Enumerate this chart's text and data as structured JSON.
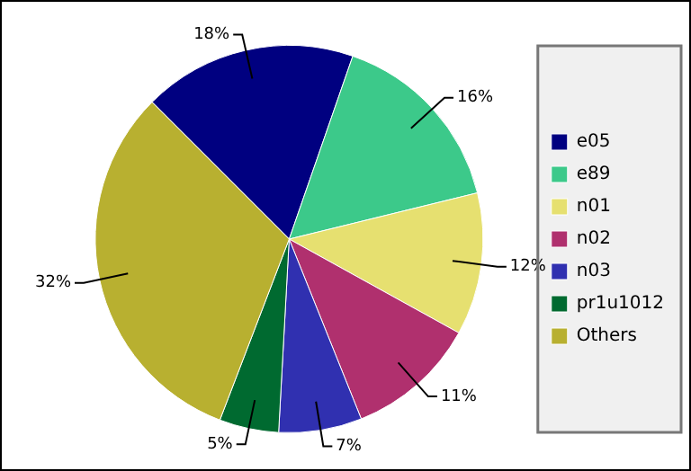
{
  "chart_data": {
    "type": "pie",
    "categories": [
      "e05",
      "e89",
      "n01",
      "n02",
      "n03",
      "pr1u1012",
      "Others"
    ],
    "values": [
      18,
      16,
      12,
      11,
      7,
      5,
      32
    ],
    "value_labels": [
      "18%",
      "16%",
      "12%",
      "11%",
      "7%",
      "5%",
      "32%"
    ],
    "colors": [
      "#000080",
      "#3cc98a",
      "#e6e070",
      "#b0306e",
      "#3030b0",
      "#006a30",
      "#b8b030"
    ],
    "legend": "right"
  }
}
